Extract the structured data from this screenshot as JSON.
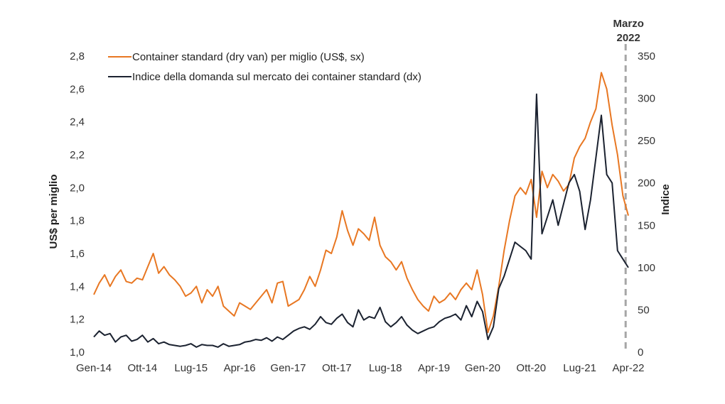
{
  "chart_data": {
    "type": "line",
    "title": "",
    "ylabel_left": "US$ per miglio",
    "ylabel_right": "Indice",
    "xlabel": "",
    "ylim_left": [
      1.0,
      2.8
    ],
    "ylim_right": [
      0,
      350
    ],
    "y_ticks_left": [
      "1,0",
      "1,2",
      "1,4",
      "1,6",
      "1,8",
      "2,0",
      "2,2",
      "2,4",
      "2,6",
      "2,8"
    ],
    "y_ticks_right": [
      "0",
      "50",
      "100",
      "150",
      "200",
      "250",
      "300",
      "350"
    ],
    "x_tick_labels": [
      "Gen-14",
      "Ott-14",
      "Lug-15",
      "Apr-16",
      "Gen-17",
      "Ott-17",
      "Lug-18",
      "Apr-19",
      "Gen-20",
      "Ott-20",
      "Lug-21",
      "Apr-22"
    ],
    "grid": false,
    "legend_position": "top-left",
    "annotation": {
      "date": "2022-03",
      "line1": "Marzo",
      "line2": "2022",
      "style": "dashed vertical line",
      "color": "#a6a6a6"
    },
    "series": [
      {
        "name": "Container standard (dry van) per miglio (US$, sx)",
        "axis": "left",
        "color": "#e87722",
        "x": [
          "2014-01",
          "2014-02",
          "2014-03",
          "2014-04",
          "2014-05",
          "2014-06",
          "2014-07",
          "2014-08",
          "2014-09",
          "2014-10",
          "2014-11",
          "2014-12",
          "2015-01",
          "2015-02",
          "2015-03",
          "2015-04",
          "2015-05",
          "2015-06",
          "2015-07",
          "2015-08",
          "2015-09",
          "2015-10",
          "2015-11",
          "2015-12",
          "2016-01",
          "2016-02",
          "2016-03",
          "2016-04",
          "2016-05",
          "2016-06",
          "2016-07",
          "2016-08",
          "2016-09",
          "2016-10",
          "2016-11",
          "2016-12",
          "2017-01",
          "2017-02",
          "2017-03",
          "2017-04",
          "2017-05",
          "2017-06",
          "2017-07",
          "2017-08",
          "2017-09",
          "2017-10",
          "2017-11",
          "2017-12",
          "2018-01",
          "2018-02",
          "2018-03",
          "2018-04",
          "2018-05",
          "2018-06",
          "2018-07",
          "2018-08",
          "2018-09",
          "2018-10",
          "2018-11",
          "2018-12",
          "2019-01",
          "2019-02",
          "2019-03",
          "2019-04",
          "2019-05",
          "2019-06",
          "2019-07",
          "2019-08",
          "2019-09",
          "2019-10",
          "2019-11",
          "2019-12",
          "2020-01",
          "2020-02",
          "2020-03",
          "2020-04",
          "2020-05",
          "2020-06",
          "2020-07",
          "2020-08",
          "2020-09",
          "2020-10",
          "2020-11",
          "2020-12",
          "2021-01",
          "2021-02",
          "2021-03",
          "2021-04",
          "2021-05",
          "2021-06",
          "2021-07",
          "2021-08",
          "2021-09",
          "2021-10",
          "2021-11",
          "2021-12",
          "2022-01",
          "2022-02",
          "2022-03",
          "2022-04"
        ],
        "values": [
          1.35,
          1.42,
          1.47,
          1.4,
          1.46,
          1.5,
          1.43,
          1.42,
          1.45,
          1.44,
          1.52,
          1.6,
          1.48,
          1.52,
          1.47,
          1.44,
          1.4,
          1.34,
          1.36,
          1.4,
          1.3,
          1.38,
          1.34,
          1.4,
          1.28,
          1.25,
          1.22,
          1.3,
          1.28,
          1.26,
          1.3,
          1.34,
          1.38,
          1.3,
          1.42,
          1.43,
          1.28,
          1.3,
          1.32,
          1.38,
          1.46,
          1.4,
          1.5,
          1.62,
          1.6,
          1.7,
          1.86,
          1.74,
          1.65,
          1.75,
          1.72,
          1.68,
          1.82,
          1.65,
          1.58,
          1.55,
          1.5,
          1.55,
          1.45,
          1.38,
          1.32,
          1.28,
          1.25,
          1.34,
          1.3,
          1.32,
          1.36,
          1.32,
          1.38,
          1.42,
          1.38,
          1.5,
          1.35,
          1.12,
          1.22,
          1.4,
          1.62,
          1.8,
          1.95,
          2.0,
          1.96,
          2.05,
          1.82,
          2.1,
          2.0,
          2.08,
          2.04,
          1.98,
          2.02,
          2.18,
          2.25,
          2.3,
          2.4,
          2.48,
          2.7,
          2.6,
          2.38,
          2.2,
          1.95,
          1.83
        ]
      },
      {
        "name": "Indice della domanda sul mercato dei container standard (dx)",
        "axis": "right",
        "color": "#1b2230",
        "x": [
          "2014-01",
          "2014-02",
          "2014-03",
          "2014-04",
          "2014-05",
          "2014-06",
          "2014-07",
          "2014-08",
          "2014-09",
          "2014-10",
          "2014-11",
          "2014-12",
          "2015-01",
          "2015-02",
          "2015-03",
          "2015-04",
          "2015-05",
          "2015-06",
          "2015-07",
          "2015-08",
          "2015-09",
          "2015-10",
          "2015-11",
          "2015-12",
          "2016-01",
          "2016-02",
          "2016-03",
          "2016-04",
          "2016-05",
          "2016-06",
          "2016-07",
          "2016-08",
          "2016-09",
          "2016-10",
          "2016-11",
          "2016-12",
          "2017-01",
          "2017-02",
          "2017-03",
          "2017-04",
          "2017-05",
          "2017-06",
          "2017-07",
          "2017-08",
          "2017-09",
          "2017-10",
          "2017-11",
          "2017-12",
          "2018-01",
          "2018-02",
          "2018-03",
          "2018-04",
          "2018-05",
          "2018-06",
          "2018-07",
          "2018-08",
          "2018-09",
          "2018-10",
          "2018-11",
          "2018-12",
          "2019-01",
          "2019-02",
          "2019-03",
          "2019-04",
          "2019-05",
          "2019-06",
          "2019-07",
          "2019-08",
          "2019-09",
          "2019-10",
          "2019-11",
          "2019-12",
          "2020-01",
          "2020-02",
          "2020-03",
          "2020-04",
          "2020-05",
          "2020-06",
          "2020-07",
          "2020-08",
          "2020-09",
          "2020-10",
          "2020-11",
          "2020-12",
          "2021-01",
          "2021-02",
          "2021-03",
          "2021-04",
          "2021-05",
          "2021-06",
          "2021-07",
          "2021-08",
          "2021-09",
          "2021-10",
          "2021-11",
          "2021-12",
          "2022-01",
          "2022-02",
          "2022-03",
          "2022-04"
        ],
        "values": [
          18,
          25,
          20,
          22,
          12,
          18,
          20,
          13,
          15,
          20,
          12,
          16,
          10,
          12,
          9,
          8,
          7,
          8,
          10,
          6,
          9,
          8,
          8,
          6,
          10,
          7,
          8,
          9,
          12,
          13,
          15,
          14,
          17,
          13,
          18,
          15,
          20,
          25,
          28,
          30,
          27,
          33,
          42,
          35,
          33,
          40,
          45,
          35,
          30,
          50,
          38,
          42,
          40,
          53,
          36,
          30,
          35,
          42,
          32,
          26,
          22,
          25,
          28,
          30,
          36,
          40,
          42,
          45,
          38,
          55,
          42,
          60,
          48,
          15,
          30,
          75,
          90,
          110,
          130,
          125,
          120,
          110,
          305,
          140,
          160,
          180,
          150,
          175,
          200,
          210,
          190,
          145,
          180,
          230,
          280,
          210,
          200,
          120,
          110,
          100
        ]
      }
    ]
  }
}
